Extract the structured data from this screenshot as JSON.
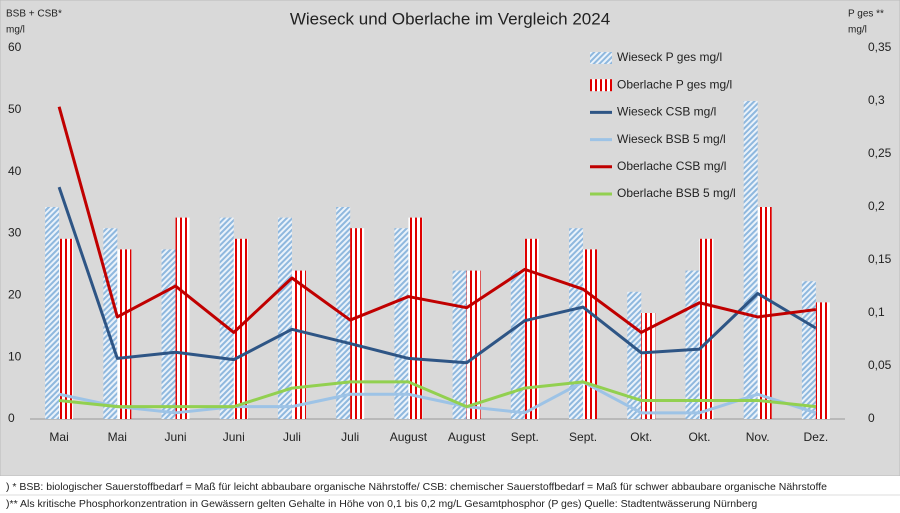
{
  "chart_data": {
    "type": "bar-line",
    "title": "Wieseck und Oberlache im Vergleich 2024",
    "ylabel": [
      "BSB + CSB*",
      "mg/l"
    ],
    "y2label": [
      "P ges **",
      "mg/l"
    ],
    "categories": [
      "Mai",
      "Mai",
      "Juni",
      "Juni",
      "Juli",
      "Juli",
      "August",
      "August",
      "Sept.",
      "Sept.",
      "Okt.",
      "Okt.",
      "Nov.",
      "Dez."
    ],
    "ylim": [
      0,
      60
    ],
    "yticks": [
      0,
      10,
      20,
      30,
      40,
      50,
      60
    ],
    "y2lim": [
      0,
      0.35
    ],
    "y2ticks": [
      {
        "value": 0,
        "label": "0"
      },
      {
        "value": 0.05,
        "label": "0,05"
      },
      {
        "value": 0.1,
        "label": "0,1"
      },
      {
        "value": 0.15,
        "label": "0,15"
      },
      {
        "value": 0.2,
        "label": "0,2"
      },
      {
        "value": 0.25,
        "label": "0,25"
      },
      {
        "value": 0.3,
        "label": "0,3"
      },
      {
        "value": 0.35,
        "label": "0,35"
      }
    ],
    "grid": false,
    "legend": "upper right",
    "series": [
      {
        "name": "Wieseck P ges mg/l",
        "type": "bar",
        "axis": "y2",
        "color": "#8fb8de",
        "values": [
          0.2,
          0.18,
          0.16,
          0.19,
          0.19,
          0.2,
          0.18,
          0.14,
          0.14,
          0.18,
          0.12,
          0.14,
          0.3,
          0.13
        ]
      },
      {
        "name": "Oberlache P ges mg/l",
        "type": "bar",
        "axis": "y2",
        "color": "#e00000",
        "values": [
          0.17,
          0.16,
          0.19,
          0.17,
          0.14,
          0.18,
          0.19,
          0.14,
          0.17,
          0.16,
          0.1,
          0.17,
          0.2,
          0.11
        ]
      },
      {
        "name": "Wieseck CSB mg/l",
        "type": "line",
        "color": "#2e5585",
        "values": [
          37.5,
          9.8,
          10.8,
          9.6,
          14.5,
          12.2,
          9.8,
          9.1,
          15.9,
          18.1,
          10.7,
          11.3,
          20.3,
          14.7
        ]
      },
      {
        "name": "Wieseck BSB 5 mg/l",
        "type": "line",
        "color": "#9dc3e6",
        "values": [
          4,
          2,
          1,
          2,
          2,
          4,
          4,
          2,
          1,
          6,
          1,
          1,
          4,
          1
        ]
      },
      {
        "name": "Oberlache CSB mg/l",
        "type": "line",
        "color": "#c00000",
        "values": [
          50.5,
          16.5,
          21.5,
          14,
          22.8,
          16,
          19.8,
          18,
          24.2,
          21,
          14,
          18.8,
          16.5,
          17.7
        ]
      },
      {
        "name": "Oberlache BSB 5 mg/l",
        "type": "line",
        "color": "#92d050",
        "values": [
          3,
          2,
          2,
          2,
          5,
          6,
          6,
          2,
          5,
          6,
          3,
          3,
          3,
          2
        ]
      }
    ],
    "footnotes": [
      ") * BSB: biologischer Sauerstoffbedarf = Maß für leicht abbaubare organische Nährstoffe/ CSB: chemischer Sauerstoffbedarf = Maß für schwer abbaubare organische Nährstoffe",
      ")** Als kritische Phosphorkonzentration in Gewässern gelten Gehalte in Höhe von 0,1 bis 0,2 mg/L Gesamtphosphor (P ges) Quelle: Stadtentwässerung Nürnberg"
    ]
  }
}
